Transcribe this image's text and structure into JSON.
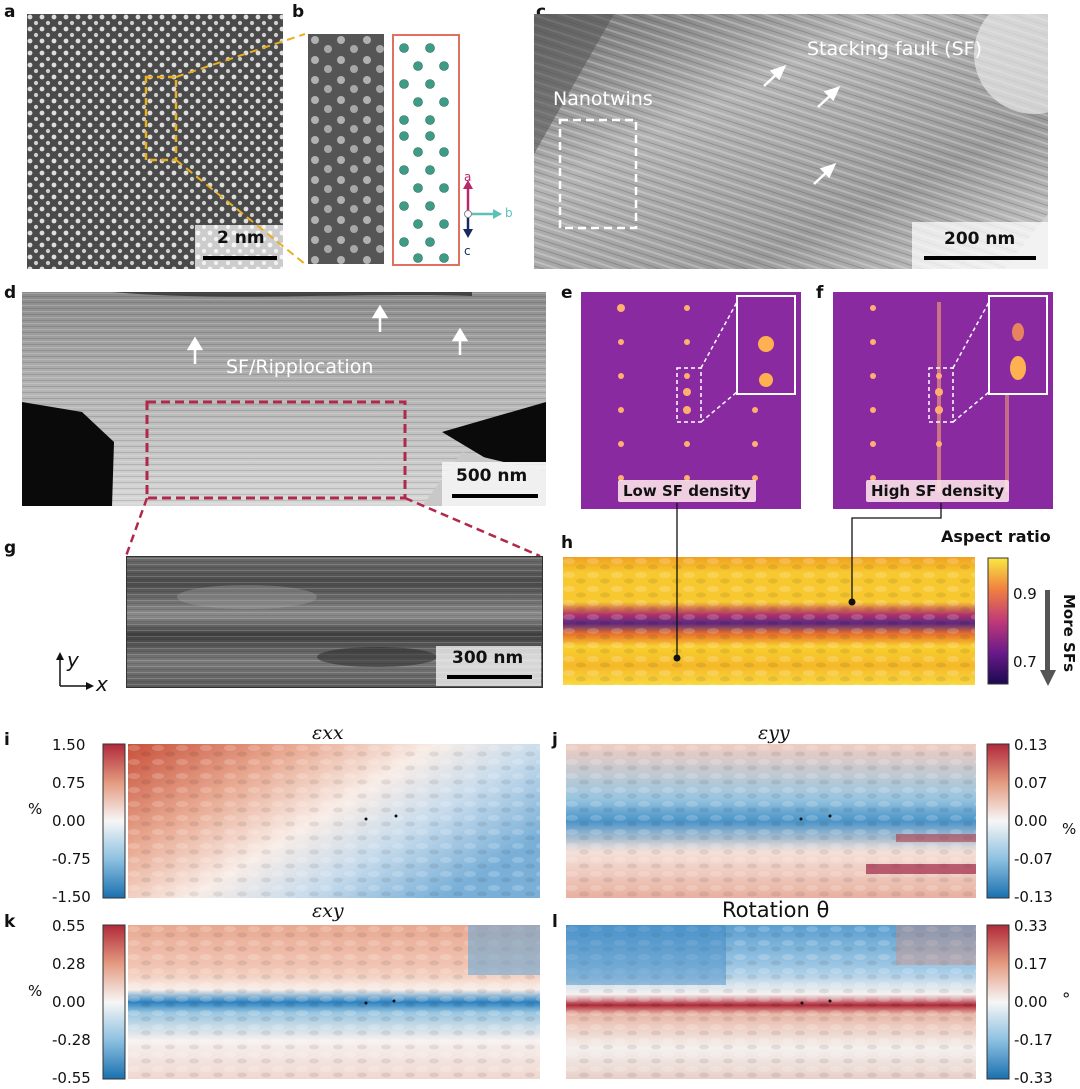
{
  "labels": {
    "a": "a",
    "b": "b",
    "c": "c",
    "d": "d",
    "e": "e",
    "f": "f",
    "g": "g",
    "h": "h",
    "i": "i",
    "j": "j",
    "k": "k",
    "l": "l"
  },
  "scale_bars": {
    "a": "2 nm",
    "c": "200 nm",
    "d": "500 nm",
    "g": "300 nm"
  },
  "panel_c": {
    "stacking_fault": "Stacking fault (SF)",
    "nanotwins": "Nanotwins"
  },
  "panel_b_axes": {
    "a": "a",
    "b": "b",
    "c": "c"
  },
  "panel_d": {
    "label": "SF/Ripplocation"
  },
  "panel_e": {
    "label": "Low SF density"
  },
  "panel_f": {
    "label": "High SF density"
  },
  "axes_xy": {
    "x": "x",
    "y": "y"
  },
  "panel_h": {
    "title": "Aspect ratio",
    "ticks": [
      "0.9",
      "0.7"
    ],
    "arrow_label": "More SFs"
  },
  "panel_i": {
    "title": "εxx",
    "unit": "%",
    "ticks": [
      "1.50",
      "0.75",
      "0.00",
      "-0.75",
      "-1.50"
    ]
  },
  "panel_j": {
    "title": "εyy",
    "unit": "%",
    "ticks": [
      "0.13",
      "0.07",
      "0.00",
      "-0.07",
      "-0.13"
    ]
  },
  "panel_k": {
    "title": "εxy",
    "unit": "%",
    "ticks": [
      "0.55",
      "0.28",
      "0.00",
      "-0.28",
      "-0.55"
    ]
  },
  "panel_l": {
    "title": "Rotation θ",
    "unit": "°",
    "ticks": [
      "0.33",
      "0.17",
      "0.00",
      "-0.17",
      "-0.33"
    ]
  },
  "colors": {
    "zoom_box_a": "#e8b020",
    "zoom_box_d": "#b0284a",
    "box_b_border": "#e07060",
    "atom": "#3f9a86",
    "axis_a": "#b8286a",
    "axis_b": "#5cc0b8",
    "axis_c": "#1a2a60",
    "fft_bg": "#8a2aa0",
    "fft_spot": "#ffb070"
  }
}
